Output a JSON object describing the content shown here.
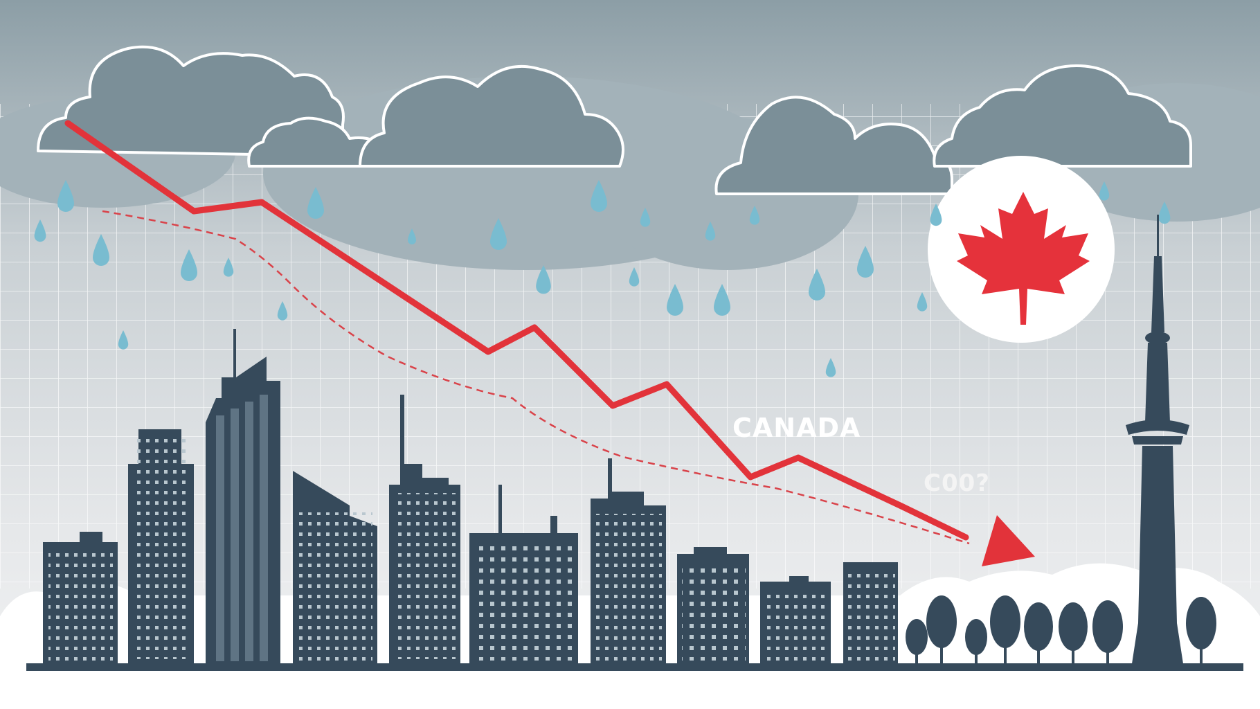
{
  "labels": {
    "country": "CANADA",
    "gas": "C00?"
  },
  "colors": {
    "sky_top": "#8c9ea6",
    "sky_bottom": "#e8eaec",
    "cloud": "#7b8f98",
    "cloud_light": "#a3b2b9",
    "cloud_outline": "#ffffff",
    "rain": "#79bcd0",
    "trend_line": "#e2333a",
    "trend_dashed": "#d9434a",
    "maple_leaf": "#e5323b",
    "sun_disc": "#ffffff",
    "buildings": "#364a5b",
    "windows": "#b9c7cf",
    "ground": "#ffffff",
    "grid": "#ffffff"
  },
  "icons": {
    "flag": "maple-leaf-icon",
    "arrow": "down-arrow-icon",
    "tower": "cn-tower-icon"
  }
}
